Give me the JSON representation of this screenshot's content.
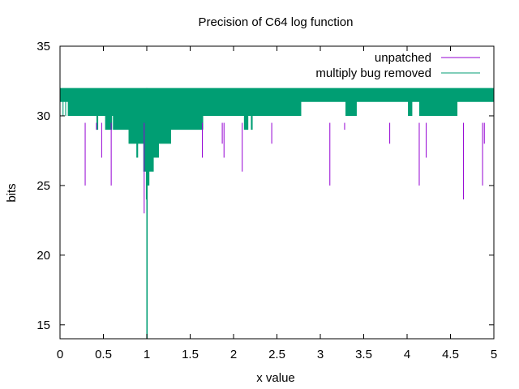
{
  "chart_data": {
    "type": "line",
    "title": "Precision of C64 log function",
    "xlabel": "x value",
    "ylabel": "bits",
    "xlim": [
      0,
      5
    ],
    "ylim": [
      14,
      35
    ],
    "xticks": [
      0,
      0.5,
      1,
      1.5,
      2,
      2.5,
      3,
      3.5,
      4,
      4.5,
      5
    ],
    "xtick_labels": [
      "0",
      "0.5",
      "1",
      "1.5",
      "2",
      "2.5",
      "3",
      "3.5",
      "4",
      "4.5",
      "5"
    ],
    "yticks": [
      15,
      20,
      25,
      30,
      35
    ],
    "ytick_labels": [
      "15",
      "20",
      "25",
      "30",
      "35"
    ],
    "grid": false,
    "legend_position": "top-right",
    "series": [
      {
        "name": "unpatched",
        "color": "#9400d3",
        "style": "impulses",
        "spikes": [
          {
            "x": 0.29,
            "y": 25
          },
          {
            "x": 0.42,
            "y": 29
          },
          {
            "x": 0.48,
            "y": 27
          },
          {
            "x": 0.59,
            "y": 25
          },
          {
            "x": 0.97,
            "y": 23
          },
          {
            "x": 1.64,
            "y": 27
          },
          {
            "x": 1.87,
            "y": 28
          },
          {
            "x": 1.89,
            "y": 27
          },
          {
            "x": 2.1,
            "y": 26
          },
          {
            "x": 2.44,
            "y": 28
          },
          {
            "x": 3.11,
            "y": 25
          },
          {
            "x": 3.28,
            "y": 29
          },
          {
            "x": 3.8,
            "y": 28
          },
          {
            "x": 4.14,
            "y": 25
          },
          {
            "x": 4.22,
            "y": 27
          },
          {
            "x": 4.65,
            "y": 24
          },
          {
            "x": 4.87,
            "y": 25
          },
          {
            "x": 4.89,
            "y": 28
          }
        ]
      },
      {
        "name": "multiply bug removed",
        "color": "#009e73",
        "style": "band",
        "top": 32,
        "lower_envelope": [
          [
            0.0,
            31
          ],
          [
            0.03,
            30
          ],
          [
            0.04,
            31
          ],
          [
            0.06,
            30
          ],
          [
            0.07,
            31
          ],
          [
            0.09,
            30
          ],
          [
            0.11,
            30
          ],
          [
            0.38,
            30
          ],
          [
            0.42,
            29
          ],
          [
            0.44,
            30
          ],
          [
            0.5,
            30
          ],
          [
            0.52,
            29
          ],
          [
            0.57,
            29
          ],
          [
            0.6,
            30
          ],
          [
            0.61,
            29
          ],
          [
            0.75,
            29
          ],
          [
            0.79,
            28
          ],
          [
            0.82,
            28
          ],
          [
            0.85,
            28
          ],
          [
            0.88,
            27
          ],
          [
            0.9,
            28
          ],
          [
            0.95,
            28
          ],
          [
            0.96,
            26
          ],
          [
            0.99,
            24
          ],
          [
            1.0,
            14
          ],
          [
            1.01,
            25
          ],
          [
            1.03,
            26
          ],
          [
            1.08,
            27
          ],
          [
            1.14,
            28
          ],
          [
            1.28,
            29
          ],
          [
            1.65,
            30
          ],
          [
            2.12,
            29
          ],
          [
            2.17,
            30
          ],
          [
            2.2,
            29
          ],
          [
            2.22,
            30
          ],
          [
            2.78,
            31
          ],
          [
            3.29,
            30
          ],
          [
            3.33,
            30
          ],
          [
            3.38,
            30
          ],
          [
            3.42,
            31
          ],
          [
            3.8,
            31
          ],
          [
            4.01,
            30
          ],
          [
            4.06,
            31
          ],
          [
            4.14,
            30
          ],
          [
            4.58,
            31
          ],
          [
            5.0,
            31
          ]
        ]
      }
    ]
  }
}
